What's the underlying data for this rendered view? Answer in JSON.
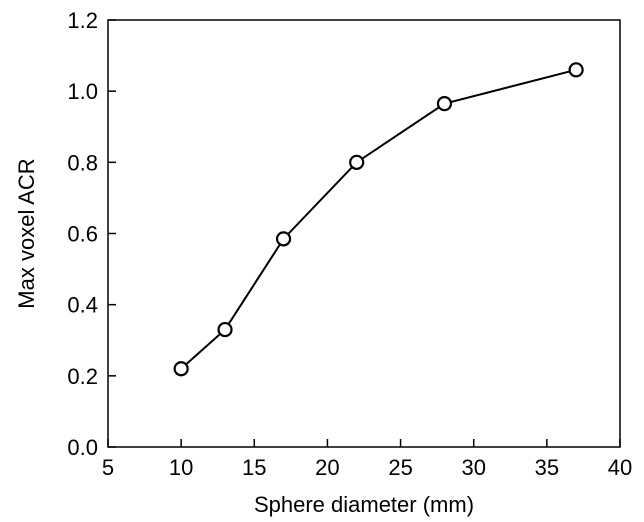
{
  "chart_data": {
    "type": "line",
    "title": "",
    "xlabel": "Sphere diameter (mm)",
    "ylabel": "Max voxel ACR",
    "xlim": [
      5,
      40
    ],
    "ylim": [
      0.0,
      1.2
    ],
    "x_ticks": [
      5,
      10,
      15,
      20,
      25,
      30,
      35,
      40
    ],
    "x_tick_labels": [
      "5",
      "10",
      "15",
      "20",
      "25",
      "30",
      "35",
      "40"
    ],
    "y_ticks": [
      0.0,
      0.2,
      0.4,
      0.6,
      0.8,
      1.0,
      1.2
    ],
    "y_tick_labels": [
      "0.0",
      "0.2",
      "0.4",
      "0.6",
      "0.8",
      "1.0",
      "1.2"
    ],
    "grid": false,
    "legend": "none",
    "series": [
      {
        "x": [
          10,
          13,
          17,
          22,
          28,
          37
        ],
        "y": [
          0.22,
          0.33,
          0.585,
          0.8,
          0.965,
          1.06
        ],
        "marker": "open-circle",
        "color": "#000000"
      }
    ]
  }
}
